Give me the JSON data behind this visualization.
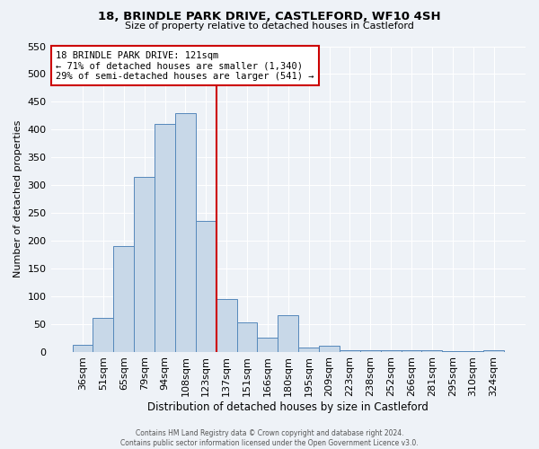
{
  "title1": "18, BRINDLE PARK DRIVE, CASTLEFORD, WF10 4SH",
  "title2": "Size of property relative to detached houses in Castleford",
  "xlabel": "Distribution of detached houses by size in Castleford",
  "ylabel": "Number of detached properties",
  "bar_labels": [
    "36sqm",
    "51sqm",
    "65sqm",
    "79sqm",
    "94sqm",
    "108sqm",
    "123sqm",
    "137sqm",
    "151sqm",
    "166sqm",
    "180sqm",
    "195sqm",
    "209sqm",
    "223sqm",
    "238sqm",
    "252sqm",
    "266sqm",
    "281sqm",
    "295sqm",
    "310sqm",
    "324sqm"
  ],
  "bar_heights": [
    12,
    60,
    190,
    315,
    410,
    430,
    235,
    95,
    52,
    25,
    65,
    8,
    10,
    2,
    3,
    2,
    2,
    2,
    1,
    1,
    2
  ],
  "bar_color": "#c8d8e8",
  "bar_edge_color": "#5588bb",
  "vline_color": "#cc0000",
  "vline_x_index": 6,
  "ylim": [
    0,
    550
  ],
  "yticks": [
    0,
    50,
    100,
    150,
    200,
    250,
    300,
    350,
    400,
    450,
    500,
    550
  ],
  "annotation_title": "18 BRINDLE PARK DRIVE: 121sqm",
  "annotation_line1": "← 71% of detached houses are smaller (1,340)",
  "annotation_line2": "29% of semi-detached houses are larger (541) →",
  "footer1": "Contains HM Land Registry data © Crown copyright and database right 2024.",
  "footer2": "Contains public sector information licensed under the Open Government Licence v3.0.",
  "bg_color": "#eef2f7",
  "plot_bg_color": "#eef2f7"
}
